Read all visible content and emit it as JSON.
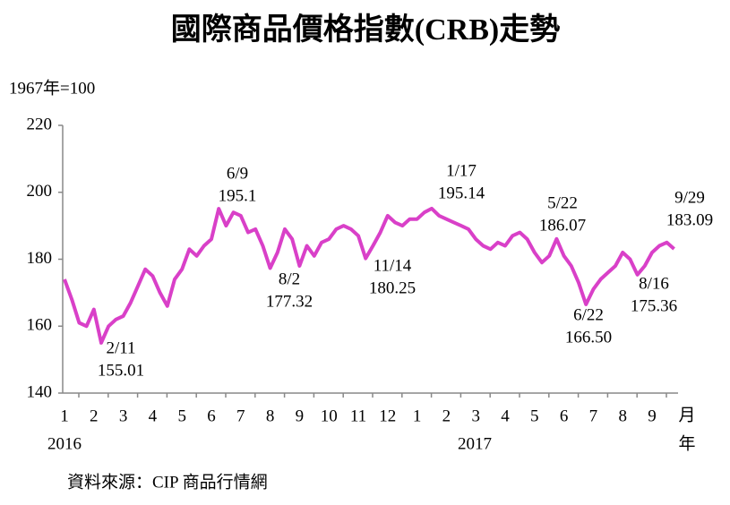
{
  "chart_data": {
    "type": "line",
    "title": "國際商品價格指數(CRB)走勢",
    "unit_label": "1967年=100",
    "source": "資料來源：CIP 商品行情網",
    "x_unit_labels": [
      "月",
      "年"
    ],
    "years": [
      "2016",
      "2017"
    ],
    "categories": [
      "1",
      null,
      null,
      null,
      "2",
      null,
      null,
      null,
      "3",
      null,
      null,
      null,
      "4",
      null,
      null,
      null,
      "5",
      null,
      null,
      null,
      "6",
      null,
      null,
      null,
      "7",
      null,
      null,
      null,
      "8",
      null,
      null,
      null,
      "9",
      null,
      null,
      null,
      "10",
      null,
      null,
      null,
      "11",
      null,
      null,
      null,
      "12",
      null,
      null,
      null,
      "1",
      null,
      null,
      null,
      "2",
      null,
      null,
      null,
      "3",
      null,
      null,
      null,
      "4",
      null,
      null,
      null,
      "5",
      null,
      null,
      null,
      "6",
      null,
      null,
      null,
      "7",
      null,
      null,
      null,
      "8",
      null,
      null,
      null,
      "9",
      null,
      null,
      null
    ],
    "series": [
      {
        "name": "CRB",
        "color": "#d940c8",
        "values": [
          174,
          168,
          161,
          160,
          165,
          155.01,
          160,
          162,
          163,
          167,
          172,
          177,
          175,
          170,
          166,
          174,
          177,
          183,
          181,
          184,
          186,
          195.1,
          190,
          194,
          193,
          188,
          189,
          184,
          177.32,
          182,
          189,
          186,
          178,
          184,
          181,
          185,
          186,
          189,
          190,
          189,
          187,
          180.25,
          184,
          188,
          193,
          191,
          190,
          192,
          192,
          194,
          195.14,
          193,
          192,
          191,
          190,
          189,
          186,
          184,
          183,
          185,
          184,
          187,
          188,
          186,
          182,
          179,
          181,
          186.07,
          181,
          178,
          173,
          166.5,
          171,
          174,
          176,
          178,
          182,
          180,
          175.36,
          178,
          182,
          184,
          185,
          183.09
        ]
      }
    ],
    "annotations": [
      {
        "date": "2/11",
        "value": 155.01
      },
      {
        "date": "6/9",
        "value": 195.1
      },
      {
        "date": "8/2",
        "value": 177.32
      },
      {
        "date": "11/14",
        "value": 180.25
      },
      {
        "date": "1/17",
        "value": 195.14
      },
      {
        "date": "5/22",
        "value": 186.07
      },
      {
        "date": "6/22",
        "value": 166.5,
        "value_label": "166.50"
      },
      {
        "date": "8/16",
        "value": 175.36
      },
      {
        "date": "9/29",
        "value": 183.09
      }
    ],
    "ylim": [
      140,
      220
    ],
    "yticks": [
      140,
      160,
      180,
      200,
      220
    ]
  }
}
